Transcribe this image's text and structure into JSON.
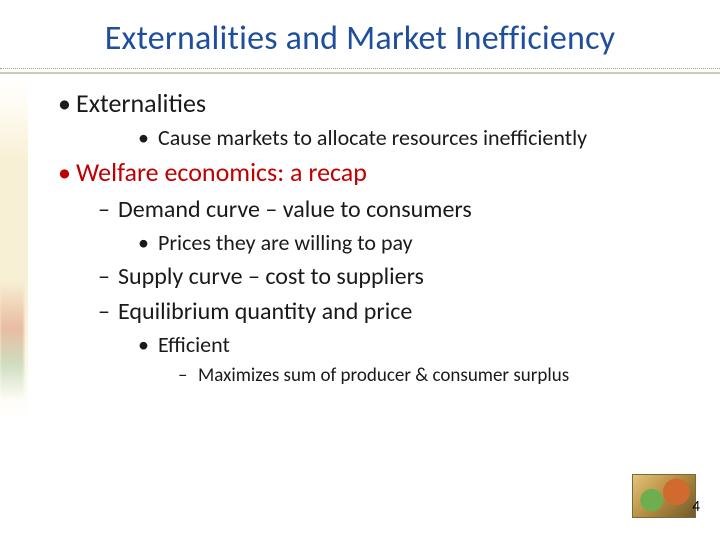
{
  "title": {
    "text": "Externalities and Market Inefficiency",
    "color": "#1f4e9c"
  },
  "colors": {
    "text_default": "#1a1a1a",
    "text_highlight": "#c00000",
    "rule": "#c6cfb4"
  },
  "bullets": [
    {
      "level": 1,
      "marker": "•",
      "text": "Externalities",
      "color": "#1a1a1a"
    },
    {
      "level": 3,
      "marker": "•",
      "text": "Cause markets to allocate resources inefficiently",
      "color": "#1a1a1a"
    },
    {
      "level": 1,
      "marker": "•",
      "text": "Welfare economics: a recap",
      "color": "#c00000"
    },
    {
      "level": 2,
      "marker": "–",
      "text": "Demand curve – value to consumers",
      "color": "#1a1a1a"
    },
    {
      "level": 3,
      "marker": "•",
      "text": "Prices they are willing to pay",
      "color": "#1a1a1a"
    },
    {
      "level": 2,
      "marker": "–",
      "text": "Supply curve – cost to suppliers",
      "color": "#1a1a1a"
    },
    {
      "level": 2,
      "marker": "–",
      "text": "Equilibrium quantity and price",
      "color": "#1a1a1a"
    },
    {
      "level": 3,
      "marker": "•",
      "text": "Efficient",
      "color": "#1a1a1a"
    },
    {
      "level": 4,
      "marker": "–",
      "text": "Maximizes sum of producer & consumer surplus",
      "color": "#1a1a1a"
    }
  ],
  "page_number": "4"
}
